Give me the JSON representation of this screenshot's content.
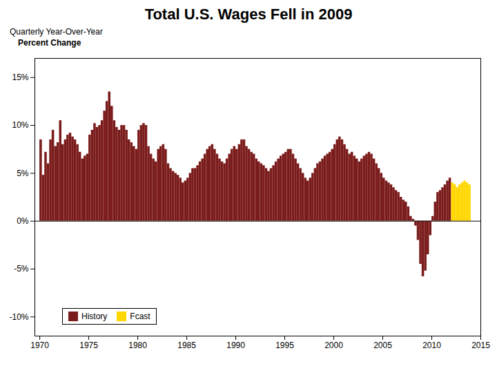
{
  "chart_data": {
    "type": "bar",
    "title": "Total U.S. Wages Fell in 2009",
    "subtitle": [
      "Quarterly Year-Over-Year",
      "Percent Change"
    ],
    "x": [
      1970,
      1970.25,
      1970.5,
      1970.75,
      1971,
      1971.25,
      1971.5,
      1971.75,
      1972,
      1972.25,
      1972.5,
      1972.75,
      1973,
      1973.25,
      1973.5,
      1973.75,
      1974,
      1974.25,
      1974.5,
      1974.75,
      1975,
      1975.25,
      1975.5,
      1975.75,
      1976,
      1976.25,
      1976.5,
      1976.75,
      1977,
      1977.25,
      1977.5,
      1977.75,
      1978,
      1978.25,
      1978.5,
      1978.75,
      1979,
      1979.25,
      1979.5,
      1979.75,
      1980,
      1980.25,
      1980.5,
      1980.75,
      1981,
      1981.25,
      1981.5,
      1981.75,
      1982,
      1982.25,
      1982.5,
      1982.75,
      1983,
      1983.25,
      1983.5,
      1983.75,
      1984,
      1984.25,
      1984.5,
      1984.75,
      1985,
      1985.25,
      1985.5,
      1985.75,
      1986,
      1986.25,
      1986.5,
      1986.75,
      1987,
      1987.25,
      1987.5,
      1987.75,
      1988,
      1988.25,
      1988.5,
      1988.75,
      1989,
      1989.25,
      1989.5,
      1989.75,
      1990,
      1990.25,
      1990.5,
      1990.75,
      1991,
      1991.25,
      1991.5,
      1991.75,
      1992,
      1992.25,
      1992.5,
      1992.75,
      1993,
      1993.25,
      1993.5,
      1993.75,
      1994,
      1994.25,
      1994.5,
      1994.75,
      1995,
      1995.25,
      1995.5,
      1995.75,
      1996,
      1996.25,
      1996.5,
      1996.75,
      1997,
      1997.25,
      1997.5,
      1997.75,
      1998,
      1998.25,
      1998.5,
      1998.75,
      1999,
      1999.25,
      1999.5,
      1999.75,
      2000,
      2000.25,
      2000.5,
      2000.75,
      2001,
      2001.25,
      2001.5,
      2001.75,
      2002,
      2002.25,
      2002.5,
      2002.75,
      2003,
      2003.25,
      2003.5,
      2003.75,
      2004,
      2004.25,
      2004.5,
      2004.75,
      2005,
      2005.25,
      2005.5,
      2005.75,
      2006,
      2006.25,
      2006.5,
      2006.75,
      2007,
      2007.25,
      2007.5,
      2007.75,
      2008,
      2008.25,
      2008.5,
      2008.75,
      2009,
      2009.25,
      2009.5,
      2009.75,
      2010,
      2010.25,
      2010.5,
      2010.75,
      2011,
      2011.25,
      2011.5,
      2011.75,
      2012,
      2012.25,
      2012.5,
      2012.75,
      2013,
      2013.25,
      2013.5,
      2013.75
    ],
    "series": [
      {
        "name": "History",
        "color": "#7B1C1C",
        "values": [
          8.5,
          4.8,
          7.2,
          6.0,
          8.5,
          9.5,
          7.8,
          8.2,
          10.5,
          8.0,
          8.5,
          9.0,
          9.2,
          8.8,
          8.5,
          8.0,
          7.2,
          6.5,
          6.8,
          7.0,
          9.0,
          9.5,
          10.2,
          9.8,
          10.0,
          10.5,
          11.5,
          12.5,
          13.5,
          12.0,
          10.5,
          9.8,
          9.5,
          10.0,
          10.0,
          9.5,
          8.5,
          8.2,
          7.8,
          7.5,
          9.5,
          10.0,
          10.2,
          10.0,
          7.8,
          7.0,
          6.5,
          6.2,
          7.5,
          7.8,
          8.0,
          7.5,
          6.0,
          5.5,
          5.2,
          5.0,
          4.8,
          4.5,
          4.0,
          4.2,
          4.5,
          5.0,
          5.5,
          5.5,
          5.8,
          6.2,
          6.5,
          7.0,
          7.5,
          7.8,
          8.0,
          7.5,
          7.0,
          6.5,
          6.2,
          6.0,
          6.5,
          7.0,
          7.5,
          7.8,
          7.5,
          8.0,
          8.5,
          8.5,
          7.8,
          7.5,
          7.2,
          7.0,
          6.5,
          6.2,
          6.0,
          5.8,
          5.5,
          5.2,
          5.5,
          5.8,
          6.2,
          6.5,
          6.8,
          7.0,
          7.2,
          7.5,
          7.5,
          7.0,
          6.5,
          6.0,
          5.5,
          5.0,
          4.5,
          4.2,
          4.5,
          5.0,
          5.5,
          6.0,
          6.2,
          6.5,
          6.8,
          7.0,
          7.2,
          7.5,
          8.0,
          8.5,
          8.8,
          8.5,
          8.0,
          7.5,
          7.0,
          7.2,
          6.8,
          6.5,
          6.2,
          6.5,
          6.8,
          7.0,
          7.2,
          7.0,
          6.5,
          6.0,
          5.5,
          5.0,
          4.5,
          4.2,
          4.0,
          3.8,
          3.5,
          3.2,
          3.0,
          2.5,
          2.2,
          2.0,
          1.5,
          0.5,
          0.2,
          -0.5,
          -2.0,
          -4.5,
          -5.8,
          -5.2,
          -3.5,
          -1.5,
          0.5,
          2.0,
          3.0,
          3.2,
          3.5,
          3.8,
          4.2,
          4.5,
          null,
          null,
          null,
          null,
          null,
          null,
          null,
          null
        ]
      },
      {
        "name": "Fcast",
        "color": "#FFD700",
        "values": [
          null,
          null,
          null,
          null,
          null,
          null,
          null,
          null,
          null,
          null,
          null,
          null,
          null,
          null,
          null,
          null,
          null,
          null,
          null,
          null,
          null,
          null,
          null,
          null,
          null,
          null,
          null,
          null,
          null,
          null,
          null,
          null,
          null,
          null,
          null,
          null,
          null,
          null,
          null,
          null,
          null,
          null,
          null,
          null,
          null,
          null,
          null,
          null,
          null,
          null,
          null,
          null,
          null,
          null,
          null,
          null,
          null,
          null,
          null,
          null,
          null,
          null,
          null,
          null,
          null,
          null,
          null,
          null,
          null,
          null,
          null,
          null,
          null,
          null,
          null,
          null,
          null,
          null,
          null,
          null,
          null,
          null,
          null,
          null,
          null,
          null,
          null,
          null,
          null,
          null,
          null,
          null,
          null,
          null,
          null,
          null,
          null,
          null,
          null,
          null,
          null,
          null,
          null,
          null,
          null,
          null,
          null,
          null,
          null,
          null,
          null,
          null,
          null,
          null,
          null,
          null,
          null,
          null,
          null,
          null,
          null,
          null,
          null,
          null,
          null,
          null,
          null,
          null,
          null,
          null,
          null,
          null,
          null,
          null,
          null,
          null,
          null,
          null,
          null,
          null,
          null,
          null,
          null,
          null,
          null,
          null,
          null,
          null,
          null,
          null,
          null,
          null,
          null,
          null,
          null,
          null,
          null,
          null,
          null,
          null,
          null,
          null,
          null,
          null,
          null,
          null,
          null,
          null,
          4.0,
          3.8,
          3.5,
          3.8,
          4.0,
          4.2,
          4.0,
          3.8
        ]
      }
    ],
    "xlim": [
      1969.5,
      2015
    ],
    "xticks": [
      1970,
      1975,
      1980,
      1985,
      1990,
      1995,
      2000,
      2005,
      2010,
      2015
    ],
    "ylim": [
      -12,
      17
    ],
    "yticks": [
      {
        "value": -10,
        "label": "-10%"
      },
      {
        "value": -5,
        "label": "-5%"
      },
      {
        "value": 0,
        "label": "0%"
      },
      {
        "value": 5,
        "label": "5%"
      },
      {
        "value": 10,
        "label": "10%"
      },
      {
        "value": 15,
        "label": "15%"
      }
    ],
    "grid": false,
    "legend": "lower left"
  }
}
